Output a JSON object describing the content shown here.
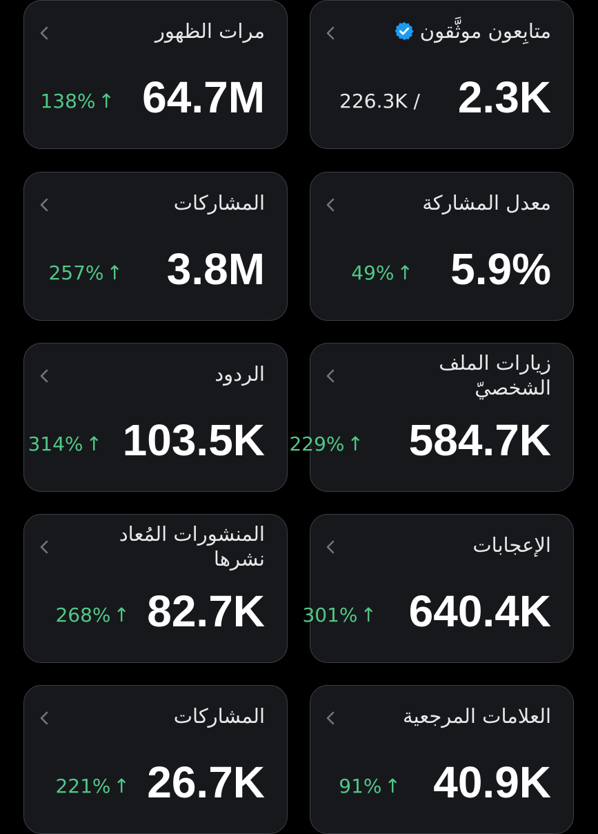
{
  "stats": [
    {
      "title": "مرات الظهور",
      "value": "64.7M",
      "change": "138%",
      "arrow": "↑"
    },
    {
      "title": "متابِعون موثَّقون",
      "value": "2.3K",
      "denominator": "226.3K /",
      "verified_icon": "verified-badge-icon",
      "accent": "#1d9bf0"
    },
    {
      "title": "المشاركات",
      "value": "3.8M",
      "change": "257%",
      "arrow": "↑"
    },
    {
      "title": "معدل المشاركة",
      "value": "5.9%",
      "change": "49%",
      "arrow": "↑"
    },
    {
      "title": "الردود",
      "value": "103.5K",
      "change": "314%",
      "arrow": "↑"
    },
    {
      "title": "زيارات الملف\nالشخصيّ",
      "value": "584.7K",
      "change": "229%",
      "arrow": "↑"
    },
    {
      "title": "المنشورات المُعاد\nنشرها",
      "value": "82.7K",
      "change": "268%",
      "arrow": "↑"
    },
    {
      "title": "الإعجابات",
      "value": "640.4K",
      "change": "301%",
      "arrow": "↑"
    },
    {
      "title": "المشاركات",
      "value": "26.7K",
      "change": "221%",
      "arrow": "↑"
    },
    {
      "title": "العلامات المرجعية",
      "value": "40.9K",
      "change": "91%",
      "arrow": "↑"
    }
  ],
  "colors": {
    "background": "#000000",
    "card": "#16181c",
    "border": "#3b3f44",
    "positive": "#52c886",
    "chevron": "#71767b"
  }
}
